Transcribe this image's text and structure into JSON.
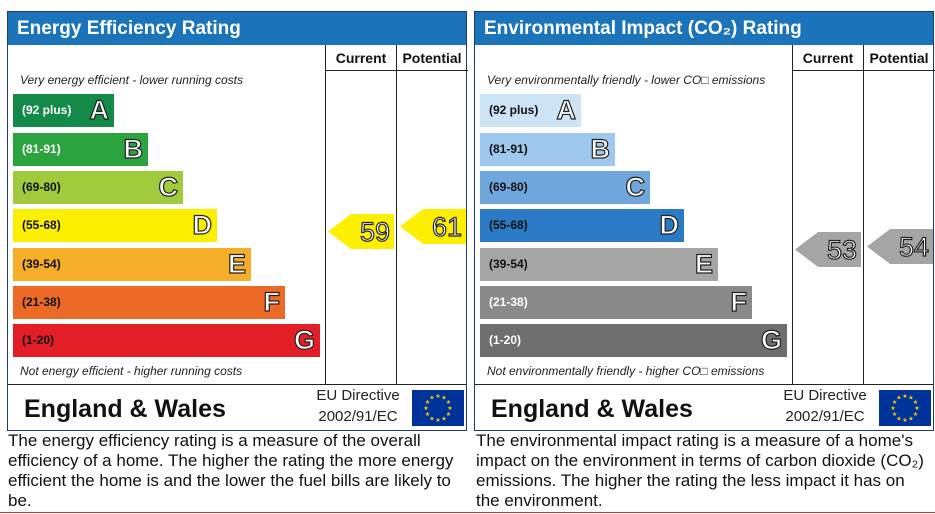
{
  "energy": {
    "title": "Energy Efficiency Rating",
    "col_current": "Current",
    "col_potential": "Potential",
    "top_caption": "Very energy efficient - lower running costs",
    "bottom_caption": "Not energy efficient - higher running costs",
    "bands": [
      {
        "range": "(92 plus)",
        "letter": "A",
        "color": "#138a48"
      },
      {
        "range": "(81-91)",
        "letter": "B",
        "color": "#2ba43f"
      },
      {
        "range": "(69-80)",
        "letter": "C",
        "color": "#9fcb3c"
      },
      {
        "range": "(55-68)",
        "letter": "D",
        "color": "#fdef00"
      },
      {
        "range": "(39-54)",
        "letter": "E",
        "color": "#f6ae28"
      },
      {
        "range": "(21-38)",
        "letter": "F",
        "color": "#ec6a25"
      },
      {
        "range": "(1-20)",
        "letter": "G",
        "color": "#e31e26"
      }
    ],
    "current": {
      "value": "59",
      "band": "D",
      "color": "#fdef00"
    },
    "potential": {
      "value": "61",
      "band": "D",
      "color": "#fdef00"
    },
    "country": "England & Wales",
    "directive_line1": "EU Directive",
    "directive_line2": "2002/91/EC",
    "description": "The energy efficiency rating is a measure of the overall efficiency of a home. The higher the rating the more energy efficient the home is and the lower the fuel bills are likely to be."
  },
  "environment": {
    "title": "Environmental Impact (CO₂) Rating",
    "col_current": "Current",
    "col_potential": "Potential",
    "top_caption": "Very environmentally friendly - lower CO□ emissions",
    "bottom_caption": "Not environmentally friendly - higher CO□ emissions",
    "bands": [
      {
        "range": "(92 plus)",
        "letter": "A",
        "color": "#cde3f6"
      },
      {
        "range": "(81-91)",
        "letter": "B",
        "color": "#9ec8ee"
      },
      {
        "range": "(69-80)",
        "letter": "C",
        "color": "#6fa6dc"
      },
      {
        "range": "(55-68)",
        "letter": "D",
        "color": "#2a7ac6"
      },
      {
        "range": "(39-54)",
        "letter": "E",
        "color": "#a5a5a5"
      },
      {
        "range": "(21-38)",
        "letter": "F",
        "color": "#8a8a8a"
      },
      {
        "range": "(1-20)",
        "letter": "G",
        "color": "#6e6e6e"
      }
    ],
    "current": {
      "value": "53",
      "band": "E",
      "color": "#a5a5a5"
    },
    "potential": {
      "value": "54",
      "band": "E",
      "color": "#a5a5a5"
    },
    "country": "England & Wales",
    "directive_line1": "EU Directive",
    "directive_line2": "2002/91/EC",
    "description": "The environmental impact rating is a measure of a home's impact on the environment in terms of carbon dioxide (CO₂) emissions. The higher the rating the less impact it has on the environment."
  }
}
